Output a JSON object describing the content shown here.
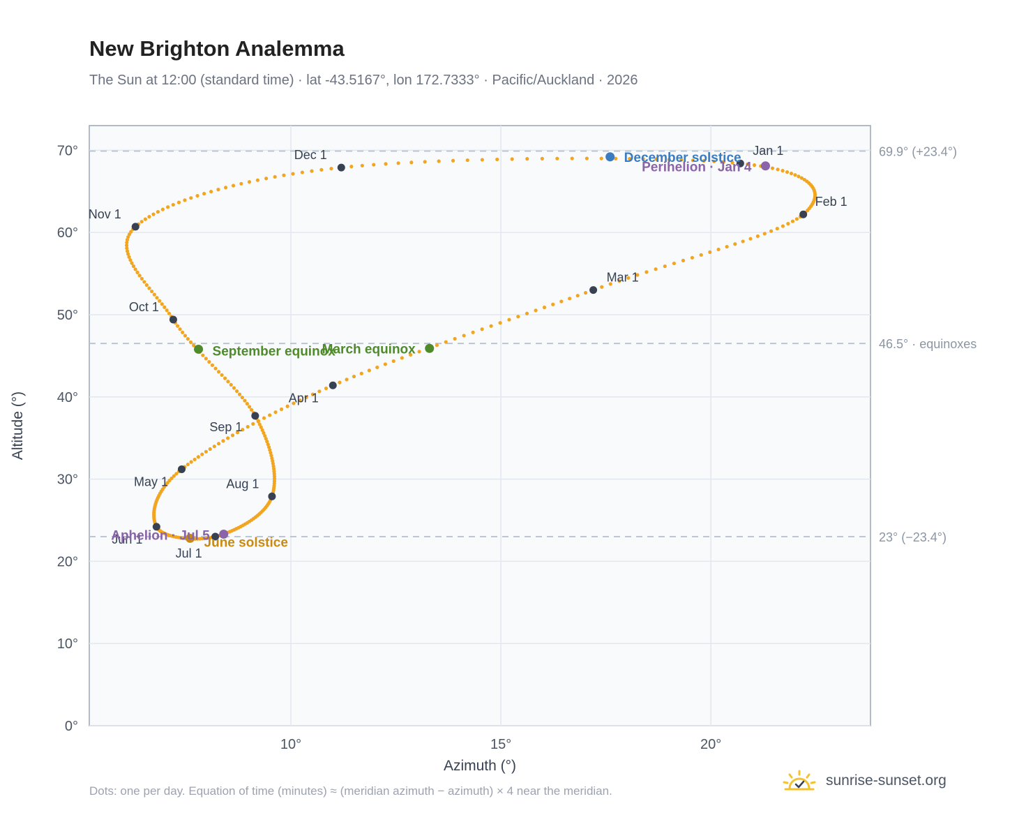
{
  "header": {
    "title": "New Brighton Analemma",
    "subtitle": "The Sun at 12:00 (standard time) · lat -43.5167°, lon 172.7333° · Pacific/Auckland · 2026"
  },
  "footer": {
    "note": "Dots: one per day. Equation of time (minutes) ≈ (meridian azimuth − azimuth) × 4 near the meridian.",
    "brand": "sunrise-sunset.org"
  },
  "colors": {
    "path": "#f2a51f",
    "month_marker": "#374151",
    "equinox": "#4f8a2b",
    "june_solstice": "#c98a12",
    "december_solstice": "#3b7bbf",
    "apsis": "#8a63a8",
    "grid": "#e3e7ee",
    "plot_bg": "#f8fafc",
    "ref_line": "#b8c2cf"
  },
  "chart_data": {
    "type": "scatter",
    "title": "New Brighton Analemma",
    "xlabel": "Azimuth (°)",
    "ylabel": "Altitude (°)",
    "xlim": [
      5.2,
      23.8
    ],
    "ylim": [
      0,
      73
    ],
    "xticks": [
      10,
      15,
      20
    ],
    "yticks": [
      0,
      10,
      20,
      30,
      40,
      50,
      60,
      70
    ],
    "x_tick_labels": [
      "10°",
      "15°",
      "20°"
    ],
    "y_tick_labels": [
      "0°",
      "10°",
      "20°",
      "30°",
      "40°",
      "50°",
      "60°",
      "70°"
    ],
    "grid": true,
    "reference_lines": [
      {
        "y": 69.9,
        "label": "69.9° (+23.4°)"
      },
      {
        "y": 46.5,
        "label": "46.5° · equinoxes"
      },
      {
        "y": 23.0,
        "label": "23° (−23.4°)"
      }
    ],
    "month_markers": [
      {
        "label": "Jan 1",
        "x": 20.7,
        "y": 68.4
      },
      {
        "label": "Feb 1",
        "x": 22.2,
        "y": 62.2
      },
      {
        "label": "Mar 1",
        "x": 17.2,
        "y": 53.0
      },
      {
        "label": "Apr 1",
        "x": 11.0,
        "y": 41.4
      },
      {
        "label": "May 1",
        "x": 7.4,
        "y": 31.2
      },
      {
        "label": "Jun 1",
        "x": 6.8,
        "y": 24.2
      },
      {
        "label": "Jul 1",
        "x": 8.2,
        "y": 23.0
      },
      {
        "label": "Aug 1",
        "x": 9.55,
        "y": 27.9
      },
      {
        "label": "Sep 1",
        "x": 9.15,
        "y": 37.7
      },
      {
        "label": "Oct 1",
        "x": 7.2,
        "y": 49.4
      },
      {
        "label": "Nov 1",
        "x": 6.3,
        "y": 60.7
      },
      {
        "label": "Dec 1",
        "x": 11.2,
        "y": 67.9
      }
    ],
    "events": [
      {
        "label": "March equinox",
        "x": 13.3,
        "y": 45.9
      },
      {
        "label": "September equinox",
        "x": 7.8,
        "y": 45.8
      },
      {
        "label": "June solstice",
        "x": 7.6,
        "y": 22.8
      },
      {
        "label": "December solstice",
        "x": 17.6,
        "y": 69.2
      },
      {
        "label": "Perihelion · Jan 4",
        "x": 21.3,
        "y": 68.1
      },
      {
        "label": "Aphelion · Jul 5",
        "x": 8.4,
        "y": 23.3
      }
    ]
  }
}
